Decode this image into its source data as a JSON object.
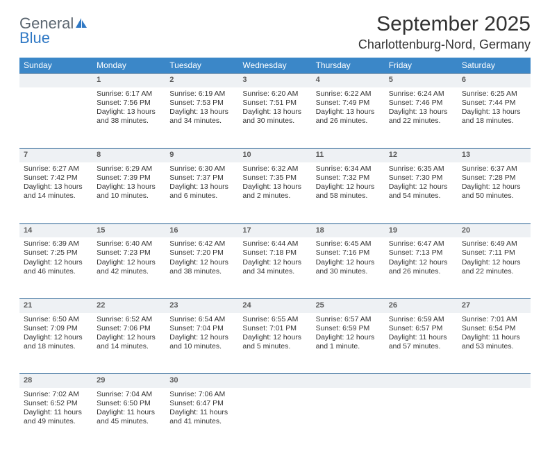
{
  "logo": {
    "word1": "General",
    "word2": "Blue"
  },
  "title": "September 2025",
  "location": "Charlottenburg-Nord, Germany",
  "weekday_header_bg": "#3b87c8",
  "weekday_header_fg": "#ffffff",
  "daynum_bg": "#eef1f4",
  "row_divider_color": "#1e5a8e",
  "body_bg": "#ffffff",
  "text_color": "#333333",
  "font_family": "Arial",
  "weekdays": [
    "Sunday",
    "Monday",
    "Tuesday",
    "Wednesday",
    "Thursday",
    "Friday",
    "Saturday"
  ],
  "weeks": [
    [
      null,
      {
        "n": "1",
        "sunrise": "6:17 AM",
        "sunset": "7:56 PM",
        "daylight": "13 hours and 38 minutes."
      },
      {
        "n": "2",
        "sunrise": "6:19 AM",
        "sunset": "7:53 PM",
        "daylight": "13 hours and 34 minutes."
      },
      {
        "n": "3",
        "sunrise": "6:20 AM",
        "sunset": "7:51 PM",
        "daylight": "13 hours and 30 minutes."
      },
      {
        "n": "4",
        "sunrise": "6:22 AM",
        "sunset": "7:49 PM",
        "daylight": "13 hours and 26 minutes."
      },
      {
        "n": "5",
        "sunrise": "6:24 AM",
        "sunset": "7:46 PM",
        "daylight": "13 hours and 22 minutes."
      },
      {
        "n": "6",
        "sunrise": "6:25 AM",
        "sunset": "7:44 PM",
        "daylight": "13 hours and 18 minutes."
      }
    ],
    [
      {
        "n": "7",
        "sunrise": "6:27 AM",
        "sunset": "7:42 PM",
        "daylight": "13 hours and 14 minutes."
      },
      {
        "n": "8",
        "sunrise": "6:29 AM",
        "sunset": "7:39 PM",
        "daylight": "13 hours and 10 minutes."
      },
      {
        "n": "9",
        "sunrise": "6:30 AM",
        "sunset": "7:37 PM",
        "daylight": "13 hours and 6 minutes."
      },
      {
        "n": "10",
        "sunrise": "6:32 AM",
        "sunset": "7:35 PM",
        "daylight": "13 hours and 2 minutes."
      },
      {
        "n": "11",
        "sunrise": "6:34 AM",
        "sunset": "7:32 PM",
        "daylight": "12 hours and 58 minutes."
      },
      {
        "n": "12",
        "sunrise": "6:35 AM",
        "sunset": "7:30 PM",
        "daylight": "12 hours and 54 minutes."
      },
      {
        "n": "13",
        "sunrise": "6:37 AM",
        "sunset": "7:28 PM",
        "daylight": "12 hours and 50 minutes."
      }
    ],
    [
      {
        "n": "14",
        "sunrise": "6:39 AM",
        "sunset": "7:25 PM",
        "daylight": "12 hours and 46 minutes."
      },
      {
        "n": "15",
        "sunrise": "6:40 AM",
        "sunset": "7:23 PM",
        "daylight": "12 hours and 42 minutes."
      },
      {
        "n": "16",
        "sunrise": "6:42 AM",
        "sunset": "7:20 PM",
        "daylight": "12 hours and 38 minutes."
      },
      {
        "n": "17",
        "sunrise": "6:44 AM",
        "sunset": "7:18 PM",
        "daylight": "12 hours and 34 minutes."
      },
      {
        "n": "18",
        "sunrise": "6:45 AM",
        "sunset": "7:16 PM",
        "daylight": "12 hours and 30 minutes."
      },
      {
        "n": "19",
        "sunrise": "6:47 AM",
        "sunset": "7:13 PM",
        "daylight": "12 hours and 26 minutes."
      },
      {
        "n": "20",
        "sunrise": "6:49 AM",
        "sunset": "7:11 PM",
        "daylight": "12 hours and 22 minutes."
      }
    ],
    [
      {
        "n": "21",
        "sunrise": "6:50 AM",
        "sunset": "7:09 PM",
        "daylight": "12 hours and 18 minutes."
      },
      {
        "n": "22",
        "sunrise": "6:52 AM",
        "sunset": "7:06 PM",
        "daylight": "12 hours and 14 minutes."
      },
      {
        "n": "23",
        "sunrise": "6:54 AM",
        "sunset": "7:04 PM",
        "daylight": "12 hours and 10 minutes."
      },
      {
        "n": "24",
        "sunrise": "6:55 AM",
        "sunset": "7:01 PM",
        "daylight": "12 hours and 5 minutes."
      },
      {
        "n": "25",
        "sunrise": "6:57 AM",
        "sunset": "6:59 PM",
        "daylight": "12 hours and 1 minute."
      },
      {
        "n": "26",
        "sunrise": "6:59 AM",
        "sunset": "6:57 PM",
        "daylight": "11 hours and 57 minutes."
      },
      {
        "n": "27",
        "sunrise": "7:01 AM",
        "sunset": "6:54 PM",
        "daylight": "11 hours and 53 minutes."
      }
    ],
    [
      {
        "n": "28",
        "sunrise": "7:02 AM",
        "sunset": "6:52 PM",
        "daylight": "11 hours and 49 minutes."
      },
      {
        "n": "29",
        "sunrise": "7:04 AM",
        "sunset": "6:50 PM",
        "daylight": "11 hours and 45 minutes."
      },
      {
        "n": "30",
        "sunrise": "7:06 AM",
        "sunset": "6:47 PM",
        "daylight": "11 hours and 41 minutes."
      },
      null,
      null,
      null,
      null
    ]
  ],
  "labels": {
    "sunrise": "Sunrise:",
    "sunset": "Sunset:",
    "daylight": "Daylight:"
  }
}
